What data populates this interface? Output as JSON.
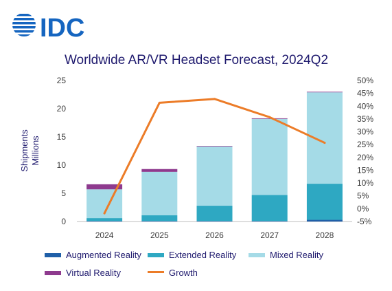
{
  "logo": {
    "text": "IDC",
    "color": "#1565c0",
    "icon": "idc-globe-logo"
  },
  "chart_data": {
    "type": "bar",
    "stacked": true,
    "title": "Worldwide AR/VR Headset Forecast, 2024Q2",
    "categories": [
      "2024",
      "2025",
      "2026",
      "2027",
      "2028"
    ],
    "ylabel": [
      "Shipments",
      "Millions"
    ],
    "ylim": [
      0,
      25
    ],
    "yticks": [
      0,
      5,
      10,
      15,
      20,
      25
    ],
    "y2lim": [
      -5,
      50
    ],
    "y2ticks": [
      -5,
      0,
      5,
      10,
      15,
      20,
      25,
      30,
      35,
      40,
      45,
      50
    ],
    "y2tick_labels": [
      "-5%",
      "0%",
      "5%",
      "10%",
      "15%",
      "20%",
      "25%",
      "30%",
      "35%",
      "40%",
      "45%",
      "50%"
    ],
    "grid": false,
    "legend_position": "bottom",
    "series": [
      {
        "name": "Augmented Reality",
        "color": "#1f5fa8",
        "values": [
          0.1,
          0.1,
          0.1,
          0.1,
          0.3
        ]
      },
      {
        "name": "Extended Reality",
        "color": "#2ea8c2",
        "values": [
          0.5,
          1.0,
          2.7,
          4.6,
          6.4
        ]
      },
      {
        "name": "Mixed Reality",
        "color": "#a5dbe7",
        "values": [
          5.1,
          7.7,
          10.5,
          13.5,
          16.2
        ]
      },
      {
        "name": "Virtual Reality",
        "color": "#8e3a8e",
        "values": [
          0.9,
          0.5,
          0.1,
          0.1,
          0.1
        ]
      }
    ],
    "line_series": {
      "name": "Growth",
      "color": "#ec7c28",
      "axis": "secondary",
      "values": [
        -1.8,
        41.3,
        42.8,
        35.7,
        25.7
      ]
    },
    "legend_order": [
      "Augmented Reality",
      "Extended Reality",
      "Mixed Reality",
      "Virtual Reality",
      "Growth"
    ]
  }
}
